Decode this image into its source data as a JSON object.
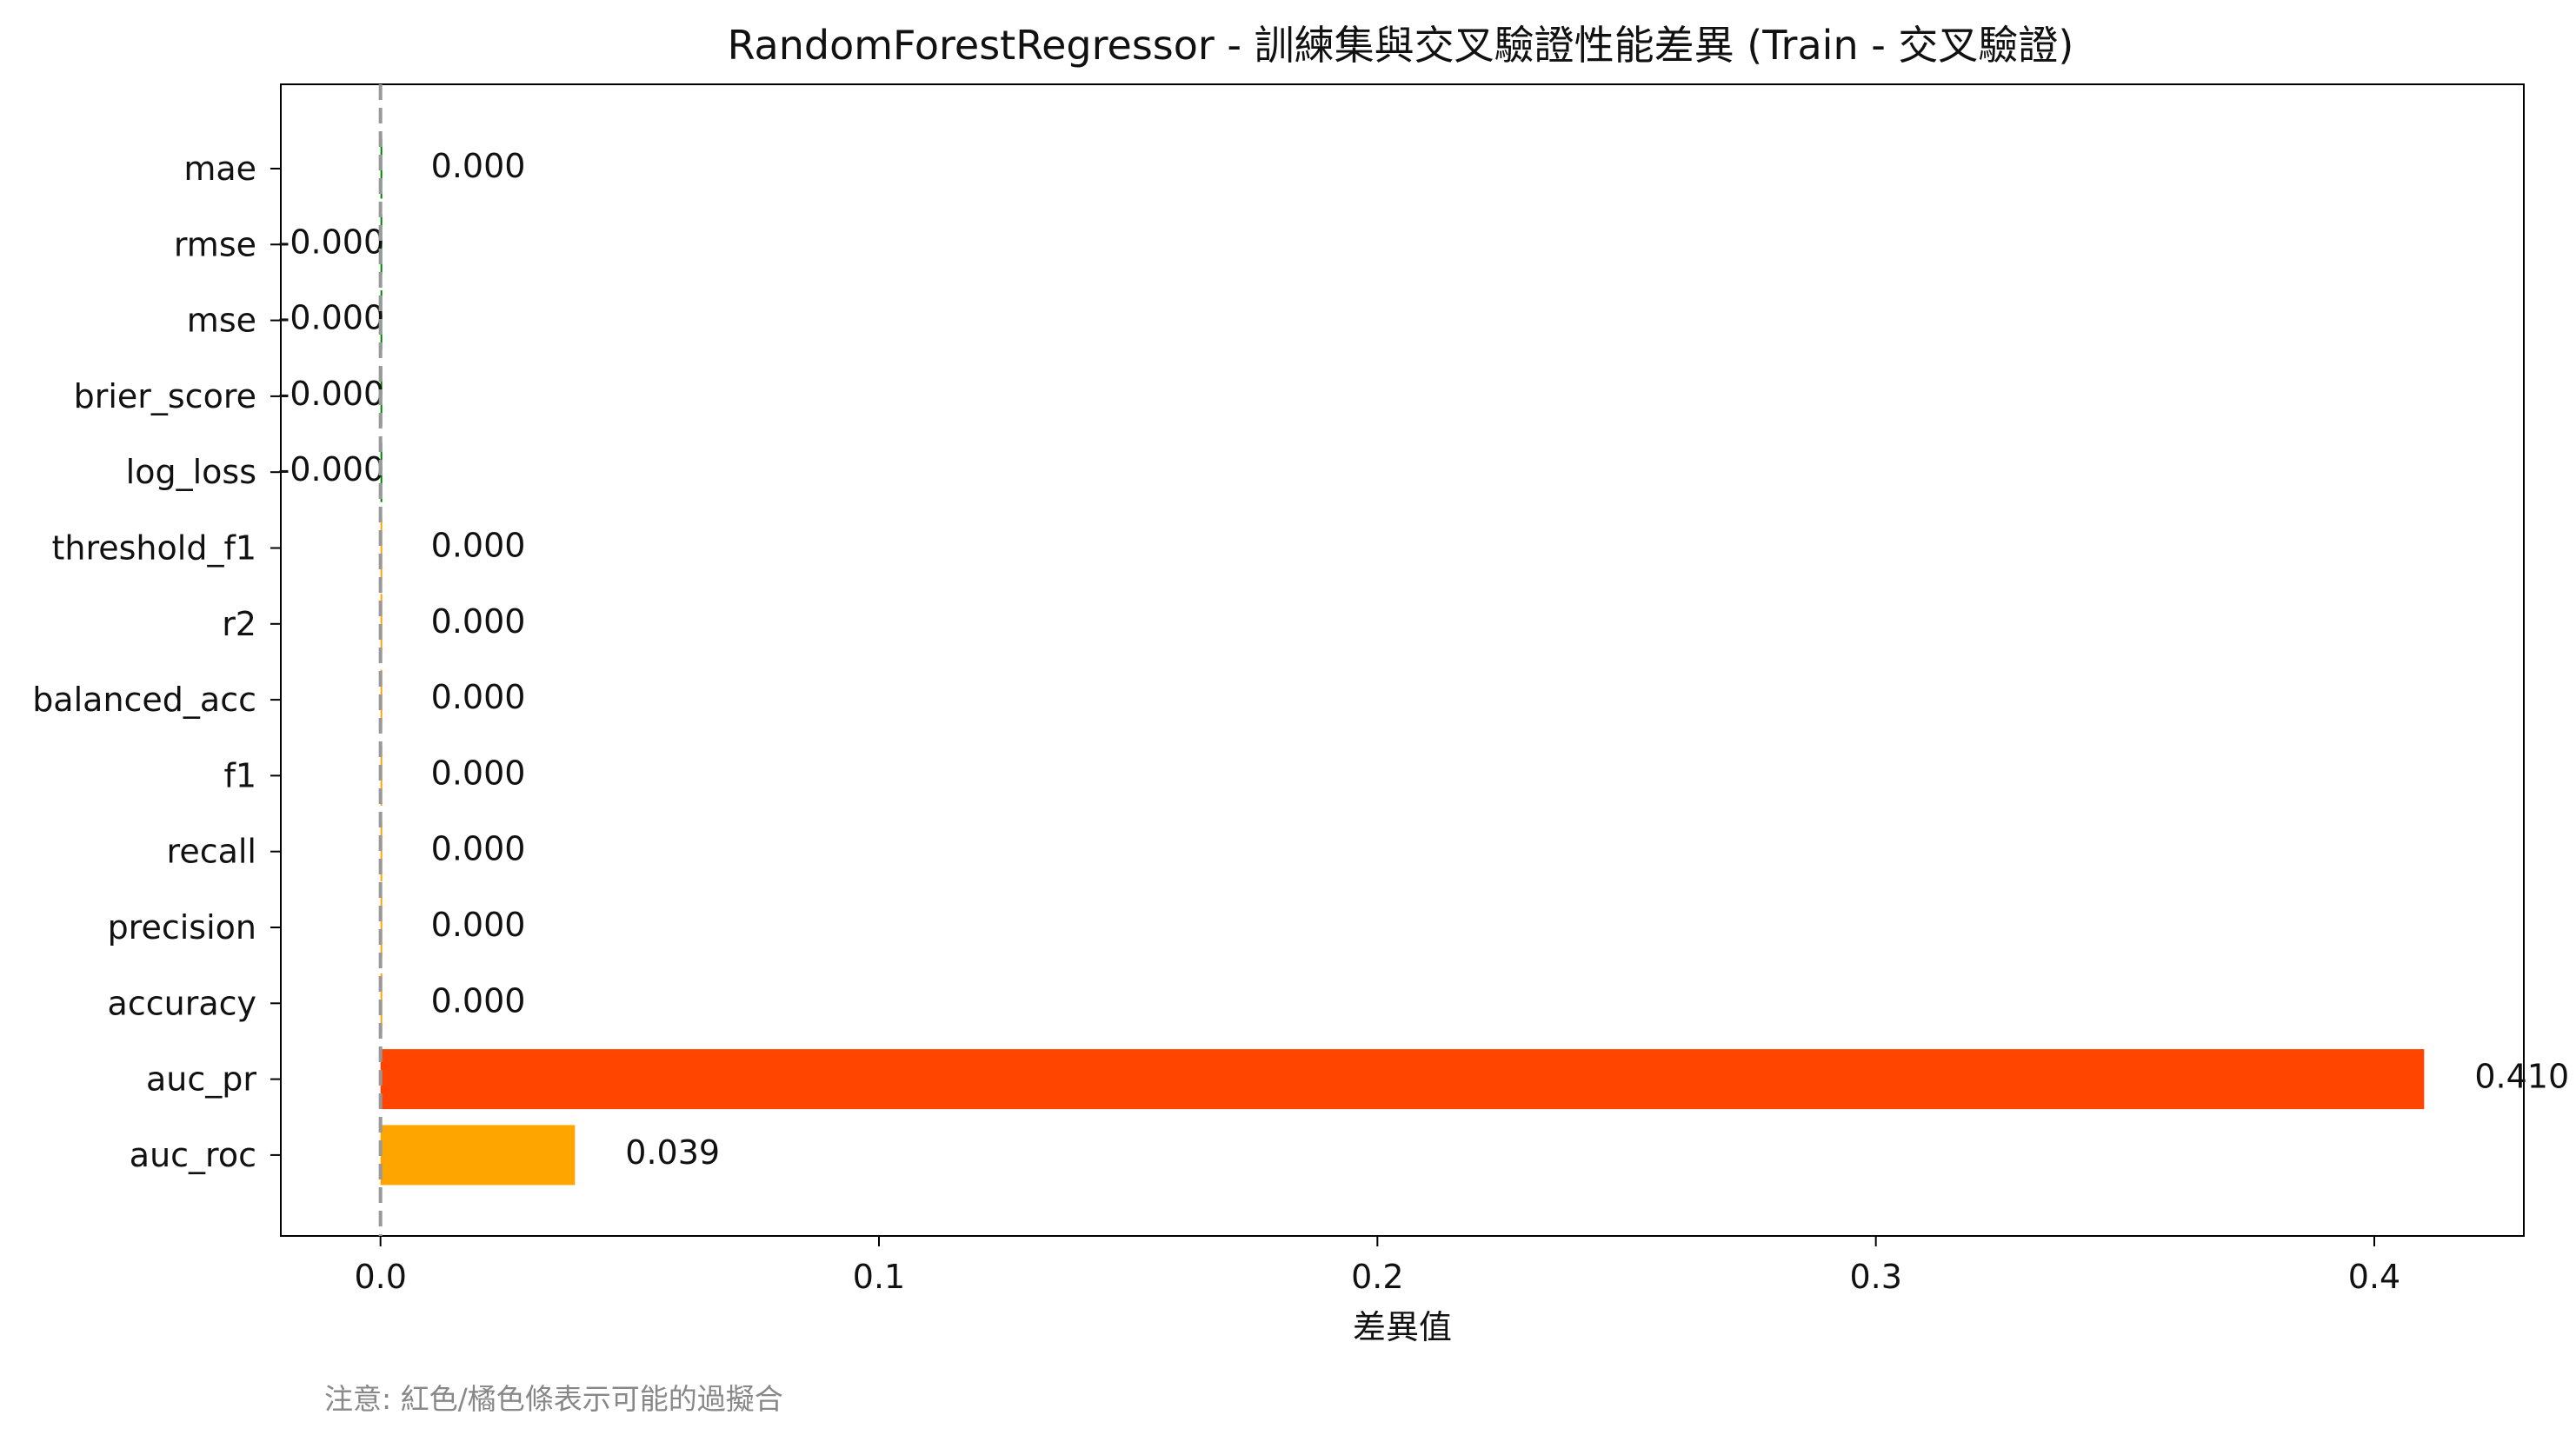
{
  "chart_data": {
    "type": "bar",
    "orientation": "horizontal",
    "title": "RandomForestRegressor - 訓練集與交叉驗證性能差異 (Train - 交叉驗證)",
    "xlabel": "差異值",
    "ylabel": "",
    "note": "注意: 紅色/橘色條表示可能的過擬合",
    "xlim": [
      -0.02,
      0.43
    ],
    "xticks": [
      0.0,
      0.1,
      0.2,
      0.3,
      0.4
    ],
    "xtick_labels": [
      "0.0",
      "0.1",
      "0.2",
      "0.3",
      "0.4"
    ],
    "grid": false,
    "reference_line": {
      "x": 0.0,
      "style": "dashed",
      "color": "#999999"
    },
    "categories": [
      "mae",
      "rmse",
      "mse",
      "brier_score",
      "log_loss",
      "threshold_f1",
      "r2",
      "balanced_acc",
      "f1",
      "recall",
      "precision",
      "accuracy",
      "auc_pr",
      "auc_roc"
    ],
    "values": [
      0.0,
      -0.0,
      -0.0,
      -0.0,
      -0.0,
      0.0,
      0.0,
      0.0,
      0.0,
      0.0,
      0.0,
      0.0,
      0.41,
      0.039
    ],
    "value_labels": [
      "0.000",
      "-0.000",
      "-0.000",
      "-0.000",
      "-0.000",
      "0.000",
      "0.000",
      "0.000",
      "0.000",
      "0.000",
      "0.000",
      "0.000",
      "0.410",
      "0.039"
    ],
    "bar_colors": [
      "#008000",
      "#008000",
      "#008000",
      "#008000",
      "#008000",
      "#ffa500",
      "#ffa500",
      "#ffa500",
      "#ffa500",
      "#ffa500",
      "#ffa500",
      "#ffa500",
      "#ff4500",
      "#ffa500"
    ]
  }
}
